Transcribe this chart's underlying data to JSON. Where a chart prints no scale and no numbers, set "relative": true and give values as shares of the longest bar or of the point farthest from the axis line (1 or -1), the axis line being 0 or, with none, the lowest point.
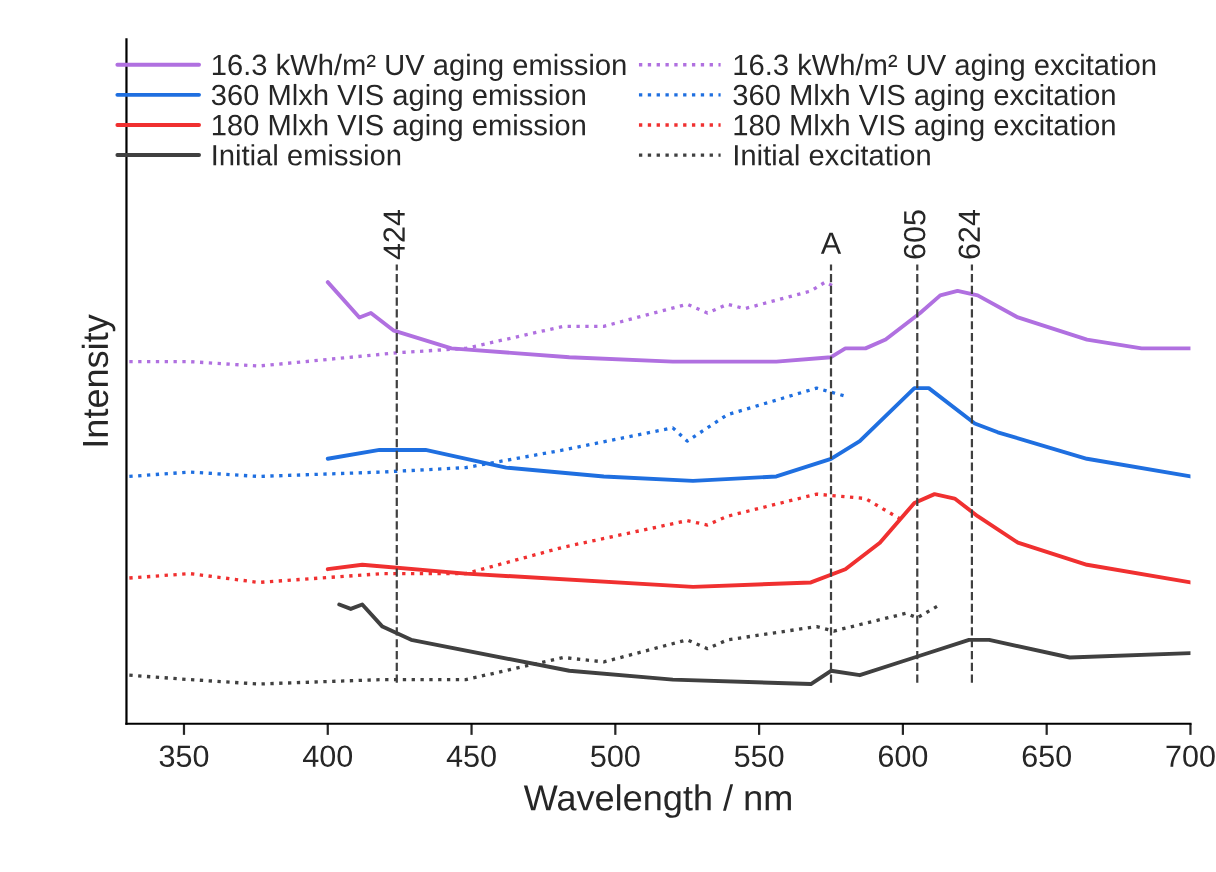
{
  "chart_data": {
    "type": "line",
    "relative": true,
    "xlabel": "Wavelength / nm",
    "ylabel": "Intensity",
    "xlim": [
      330,
      700
    ],
    "xticks": [
      350,
      400,
      450,
      500,
      550,
      600,
      650,
      700
    ],
    "legend": "top",
    "grid": false,
    "marker": "none",
    "series": [
      {
        "name": "16.3 kWh/m² UV aging emission",
        "color": "#b070e0",
        "line_style": "solid",
        "x": [
          400,
          411,
          415,
          423,
          443,
          484,
          520,
          556,
          575,
          580,
          587,
          594,
          606,
          613,
          619,
          626,
          640,
          664,
          683,
          700
        ],
        "values": [
          1.0,
          0.92,
          0.93,
          0.89,
          0.85,
          0.83,
          0.82,
          0.82,
          0.83,
          0.85,
          0.85,
          0.87,
          0.93,
          0.97,
          0.98,
          0.97,
          0.92,
          0.87,
          0.85,
          0.85
        ]
      },
      {
        "name": "16.3 kWh/m² UV aging excitation",
        "color": "#b070e0",
        "line_style": "dotted",
        "x": [
          331,
          352,
          376,
          424,
          448,
          482,
          496,
          525,
          532,
          539,
          545,
          568,
          573,
          576
        ],
        "values": [
          0.82,
          0.82,
          0.81,
          0.84,
          0.85,
          0.9,
          0.9,
          0.95,
          0.93,
          0.95,
          0.94,
          0.98,
          1.0,
          0.99
        ]
      },
      {
        "name": "360 Mlxh VIS aging emission",
        "color": "#1f6fe0",
        "line_style": "solid",
        "x": [
          400,
          418,
          434,
          462,
          496,
          527,
          556,
          575,
          585,
          604,
          609,
          625,
          633,
          664,
          700
        ],
        "values": [
          0.6,
          0.62,
          0.62,
          0.58,
          0.56,
          0.55,
          0.56,
          0.6,
          0.64,
          0.76,
          0.76,
          0.68,
          0.66,
          0.6,
          0.56
        ]
      },
      {
        "name": "360 Mlxh VIS aging excitation",
        "color": "#1f6fe0",
        "line_style": "dotted",
        "x": [
          331,
          352,
          376,
          419,
          448,
          482,
          520,
          525,
          539,
          570,
          581
        ],
        "values": [
          0.56,
          0.57,
          0.56,
          0.57,
          0.58,
          0.62,
          0.67,
          0.64,
          0.7,
          0.76,
          0.74
        ]
      },
      {
        "name": "180 Mlxh VIS aging emission",
        "color": "#f03030",
        "line_style": "solid",
        "x": [
          400,
          412,
          448,
          527,
          568,
          580,
          592,
          604,
          611,
          618,
          626,
          640,
          664,
          700
        ],
        "values": [
          0.35,
          0.36,
          0.34,
          0.31,
          0.32,
          0.35,
          0.41,
          0.5,
          0.52,
          0.51,
          0.47,
          0.41,
          0.36,
          0.32
        ]
      },
      {
        "name": "180 Mlxh VIS aging excitation",
        "color": "#f03030",
        "line_style": "dotted",
        "x": [
          331,
          352,
          376,
          419,
          448,
          482,
          525,
          532,
          539,
          570,
          587,
          600
        ],
        "values": [
          0.33,
          0.34,
          0.32,
          0.34,
          0.34,
          0.4,
          0.46,
          0.45,
          0.47,
          0.52,
          0.51,
          0.46
        ]
      },
      {
        "name": "Initial emission",
        "color": "#404040",
        "line_style": "solid",
        "x": [
          404,
          408,
          412,
          419,
          429,
          484,
          520,
          568,
          575,
          585,
          604,
          623,
          630,
          658,
          700
        ],
        "values": [
          0.27,
          0.26,
          0.27,
          0.22,
          0.19,
          0.12,
          0.1,
          0.09,
          0.12,
          0.11,
          0.15,
          0.19,
          0.19,
          0.15,
          0.16
        ]
      },
      {
        "name": "Initial excitation",
        "color": "#404040",
        "line_style": "dotted",
        "x": [
          331,
          352,
          376,
          419,
          448,
          482,
          496,
          525,
          532,
          539,
          570,
          576,
          601,
          605,
          613
        ],
        "values": [
          0.11,
          0.1,
          0.09,
          0.1,
          0.1,
          0.15,
          0.14,
          0.19,
          0.17,
          0.19,
          0.22,
          0.21,
          0.25,
          0.24,
          0.27
        ]
      }
    ],
    "ref_lines": [
      {
        "axis": "x",
        "value": 424,
        "label": "424",
        "color": "#404040",
        "line_style": "dashed"
      },
      {
        "axis": "x",
        "value": 575,
        "label": "A",
        "color": "#404040",
        "line_style": "dashed"
      },
      {
        "axis": "x",
        "value": 605,
        "label": "605",
        "color": "#404040",
        "line_style": "dashed"
      },
      {
        "axis": "x",
        "value": 624,
        "label": "624",
        "color": "#404040",
        "line_style": "dashed"
      }
    ]
  }
}
